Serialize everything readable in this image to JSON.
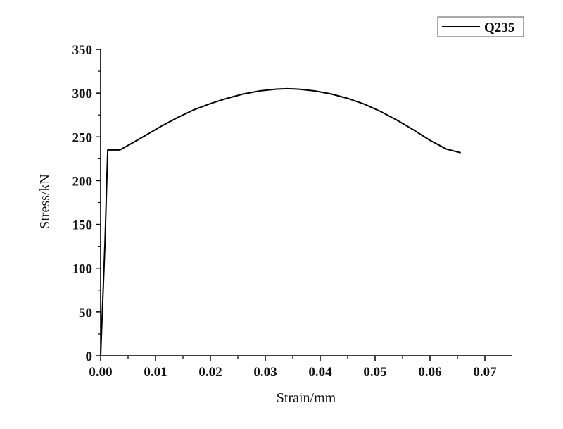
{
  "chart_data": {
    "type": "line",
    "title": "",
    "xlabel": "Strain/mm",
    "ylabel": "Stress/kN",
    "xlim": [
      0,
      0.075
    ],
    "ylim": [
      0,
      350
    ],
    "x_ticks": [
      0,
      0.01,
      0.02,
      0.03,
      0.04,
      0.05,
      0.06,
      0.07
    ],
    "x_tick_labels": [
      "0.00",
      "0.01",
      "0.02",
      "0.03",
      "0.04",
      "0.05",
      "0.06",
      "0.07"
    ],
    "y_ticks": [
      0,
      50,
      100,
      150,
      200,
      250,
      300,
      350
    ],
    "y_tick_labels": [
      "0",
      "50",
      "100",
      "150",
      "200",
      "250",
      "300",
      "350"
    ],
    "grid": false,
    "legend_position": "top-right",
    "series": [
      {
        "name": "Q235",
        "color": "#000000",
        "x": [
          0,
          0.0008,
          0.00115,
          0.0013,
          0.0035,
          0.0055,
          0.008,
          0.011,
          0.014,
          0.017,
          0.02,
          0.023,
          0.026,
          0.029,
          0.032,
          0.034,
          0.036,
          0.039,
          0.042,
          0.045,
          0.048,
          0.051,
          0.054,
          0.057,
          0.06,
          0.063,
          0.0655
        ],
        "y": [
          0,
          130,
          205,
          235,
          235,
          242,
          251,
          262,
          272,
          281,
          288,
          294,
          299,
          302.5,
          304.5,
          305,
          304.5,
          302.5,
          299,
          294,
          287.5,
          279,
          269,
          258,
          246,
          236,
          232
        ]
      }
    ]
  }
}
